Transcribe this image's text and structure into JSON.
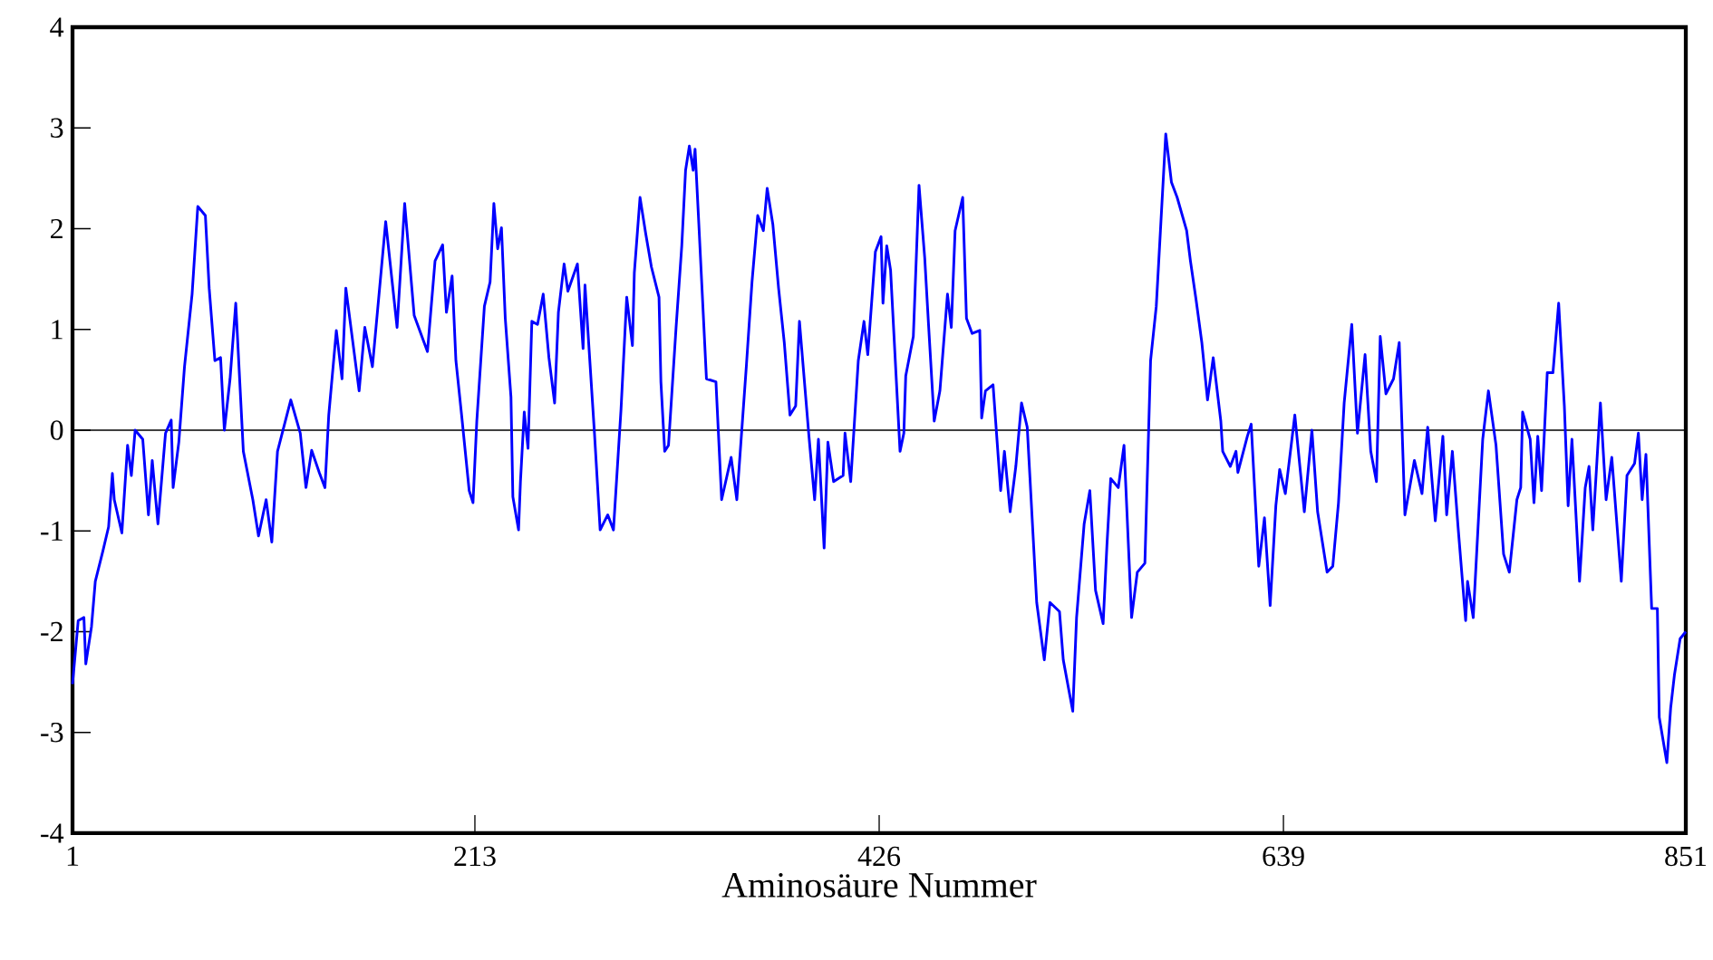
{
  "chart_data": {
    "type": "line",
    "xlabel": "Aminosäure Nummer",
    "xlim": [
      1,
      851
    ],
    "xticks": [
      1,
      213,
      426,
      639,
      851
    ],
    "ylim": [
      -4,
      4
    ],
    "yticks": [
      -4,
      -3,
      -2,
      -1,
      0,
      1,
      2,
      3,
      4
    ],
    "marker": "none",
    "line_style": "solid",
    "ref_lines": [
      {
        "axis": "y",
        "value": 0,
        "color": "#000000"
      }
    ],
    "series": [
      {
        "color": "#0000ff",
        "x": [
          1,
          4,
          7,
          8,
          11,
          13,
          17,
          20,
          22,
          23,
          27,
          30,
          32,
          34,
          38,
          41,
          43,
          46,
          50,
          53,
          54,
          57,
          60,
          64,
          67,
          71,
          73,
          76,
          79,
          81,
          84,
          87,
          91,
          96,
          99,
          103,
          106,
          109,
          116,
          121,
          124,
          127,
          131,
          134,
          136,
          140,
          143,
          145,
          152,
          155,
          159,
          166,
          172,
          176,
          181,
          188,
          192,
          196,
          198,
          201,
          203,
          206,
          210,
          212,
          214,
          218,
          221,
          223,
          225,
          227,
          229,
          232,
          233,
          236,
          237,
          239,
          241,
          243,
          246,
          249,
          252,
          255,
          257,
          260,
          262,
          267,
          270,
          271,
          276,
          279,
          283,
          286,
          290,
          293,
          296,
          297,
          300,
          303,
          306,
          310,
          311,
          313,
          315,
          319,
          322,
          324,
          326,
          328,
          329,
          331,
          335,
          340,
          343,
          348,
          351,
          356,
          359,
          362,
          365,
          367,
          370,
          373,
          376,
          379,
          382,
          384,
          389,
          392,
          394,
          397,
          399,
          402,
          407,
          408,
          411,
          415,
          418,
          420,
          424,
          427,
          428,
          430,
          432,
          437,
          439,
          440,
          444,
          447,
          450,
          452,
          455,
          458,
          462,
          464,
          466,
          470,
          472,
          475,
          479,
          480,
          482,
          486,
          490,
          492,
          495,
          498,
          501,
          504,
          509,
          513,
          516,
          521,
          523,
          528,
          530,
          534,
          537,
          540,
          544,
          546,
          548,
          552,
          555,
          559,
          562,
          566,
          569,
          572,
          577,
          580,
          583,
          588,
          590,
          593,
          596,
          599,
          602,
          606,
          607,
          611,
          614,
          615,
          620,
          622,
          626,
          629,
          632,
          635,
          637,
          640,
          645,
          650,
          654,
          657,
          662,
          665,
          668,
          671,
          675,
          678,
          682,
          685,
          688,
          690,
          693,
          697,
          700,
          703,
          708,
          712,
          715,
          719,
          723,
          725,
          728,
          731,
          735,
          736,
          739,
          744,
          747,
          751,
          755,
          758,
          762,
          764,
          765,
          769,
          771,
          773,
          775,
          778,
          781,
          784,
          787,
          789,
          791,
          795,
          798,
          800,
          802,
          806,
          809,
          812,
          817,
          820,
          824,
          826,
          828,
          830,
          833,
          836,
          837,
          841,
          843,
          845,
          848,
          851
        ],
        "values": [
          -2.52,
          -1.89,
          -1.86,
          -2.32,
          -1.95,
          -1.5,
          -1.2,
          -0.96,
          -0.43,
          -0.69,
          -1.02,
          -0.15,
          -0.45,
          0,
          -0.09,
          -0.84,
          -0.3,
          -0.93,
          -0.03,
          0.1,
          -0.57,
          -0.12,
          0.63,
          1.35,
          2.22,
          2.13,
          1.41,
          0.69,
          0.72,
          0,
          0.51,
          1.26,
          -0.21,
          -0.69,
          -1.05,
          -0.69,
          -1.11,
          -0.21,
          0.3,
          -0.03,
          -0.57,
          -0.2,
          -0.42,
          -0.57,
          0.15,
          0.99,
          0.51,
          1.41,
          0.39,
          1.02,
          0.63,
          2.07,
          1.02,
          2.25,
          1.14,
          0.78,
          1.68,
          1.84,
          1.17,
          1.53,
          0.69,
          0.15,
          -0.6,
          -0.72,
          0.09,
          1.23,
          1.47,
          2.25,
          1.8,
          2.01,
          1.11,
          0.33,
          -0.66,
          -0.99,
          -0.51,
          0.18,
          -0.18,
          1.08,
          1.05,
          1.35,
          0.72,
          0.27,
          1.17,
          1.65,
          1.38,
          1.65,
          0.81,
          1.44,
          -0.03,
          -0.99,
          -0.84,
          -0.99,
          0.21,
          1.32,
          0.84,
          1.56,
          2.31,
          1.95,
          1.62,
          1.32,
          0.48,
          -0.21,
          -0.15,
          1.02,
          1.83,
          2.58,
          2.82,
          2.58,
          2.79,
          2.04,
          0.51,
          0.48,
          -0.69,
          -0.27,
          -0.69,
          0.63,
          1.47,
          2.13,
          1.98,
          2.4,
          2.04,
          1.41,
          0.87,
          0.15,
          0.24,
          1.08,
          -0.06,
          -0.69,
          -0.09,
          -1.17,
          -0.12,
          -0.51,
          -0.45,
          -0.03,
          -0.51,
          0.69,
          1.08,
          0.75,
          1.77,
          1.92,
          1.26,
          1.83,
          1.59,
          -0.21,
          -0.03,
          0.54,
          0.93,
          2.43,
          1.71,
          1.05,
          0.09,
          0.39,
          1.35,
          1.02,
          1.98,
          2.31,
          1.11,
          0.96,
          0.99,
          0.12,
          0.39,
          0.45,
          -0.6,
          -0.21,
          -0.81,
          -0.36,
          0.27,
          0.03,
          -1.71,
          -2.28,
          -1.71,
          -1.8,
          -2.28,
          -2.79,
          -1.86,
          -0.93,
          -0.6,
          -1.59,
          -1.92,
          -1.14,
          -0.48,
          -0.57,
          -0.15,
          -1.86,
          -1.41,
          -1.32,
          0.69,
          1.23,
          2.94,
          2.46,
          2.31,
          1.98,
          1.68,
          1.29,
          0.87,
          0.3,
          0.72,
          0.09,
          -0.21,
          -0.36,
          -0.21,
          -0.42,
          -0.06,
          0.06,
          -1.35,
          -0.87,
          -1.74,
          -0.75,
          -0.39,
          -0.63,
          0.15,
          -0.81,
          0,
          -0.81,
          -1.41,
          -1.35,
          -0.72,
          0.27,
          1.05,
          -0.03,
          0.75,
          -0.21,
          -0.51,
          0.93,
          0.36,
          0.51,
          0.87,
          -0.84,
          -0.3,
          -0.63,
          0.03,
          -0.9,
          -0.06,
          -0.84,
          -0.21,
          -0.96,
          -1.89,
          -1.5,
          -1.86,
          -0.09,
          0.39,
          -0.15,
          -1.23,
          -1.41,
          -0.69,
          -0.57,
          0.18,
          -0.09,
          -0.72,
          -0.06,
          -0.6,
          0.57,
          0.57,
          1.26,
          0.24,
          -0.75,
          -0.09,
          -1.5,
          -0.57,
          -0.36,
          -0.99,
          0.27,
          -0.69,
          -0.27,
          -1.5,
          -0.45,
          -0.33,
          -0.03,
          -0.69,
          -0.24,
          -1.77,
          -1.77,
          -2.85,
          -3.3,
          -2.76,
          -2.43,
          -2.07,
          -2.0
        ]
      }
    ]
  }
}
